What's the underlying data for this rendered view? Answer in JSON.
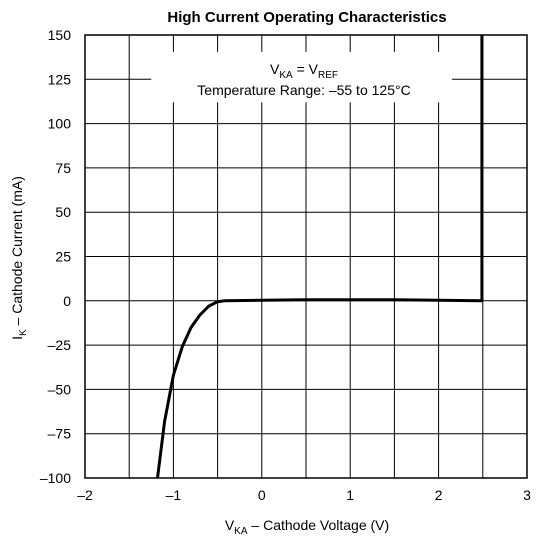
{
  "chart_data": {
    "type": "line",
    "title": "High Current Operating Characteristics",
    "xlabel": {
      "main": "V",
      "sub": "KA",
      "rest": " – Cathode Voltage (V)"
    },
    "ylabel": {
      "main": "I",
      "sub": "K",
      "rest": " – Cathode Current (mA)"
    },
    "annotation": {
      "line1": {
        "a": "V",
        "a_sub": "KA",
        "mid": " = V",
        "b_sub": "REF"
      },
      "line2": "Temperature Range: –55 to 125°C"
    },
    "xlim": [
      -2,
      3
    ],
    "ylim": [
      -100,
      150
    ],
    "xticks": [
      -2,
      -1.5,
      -1,
      -0.5,
      0,
      0.5,
      1,
      1.5,
      2,
      2.5,
      3
    ],
    "yticks": [
      -100,
      -75,
      -50,
      -25,
      0,
      25,
      50,
      75,
      100,
      125,
      150
    ],
    "xtick_labels": [
      "–2",
      "",
      "–1",
      "",
      "0",
      "",
      "1",
      "",
      "2",
      "",
      "3"
    ],
    "ytick_labels": [
      "–100",
      "–75",
      "–50",
      "–25",
      "0",
      "25",
      "50",
      "75",
      "100",
      "125",
      "150"
    ],
    "grid": true,
    "series": [
      {
        "x": [
          -1.18,
          -1.1,
          -1.0,
          -0.9,
          -0.8,
          -0.7,
          -0.6,
          -0.5,
          -0.42,
          0.0,
          0.5,
          1.0,
          1.5,
          2.0,
          2.47,
          2.49,
          2.49
        ],
        "y": [
          -100,
          -68,
          -42,
          -26,
          -15,
          -8,
          -3,
          -0.5,
          0,
          0.3,
          0.6,
          0.6,
          0.6,
          0.3,
          0,
          0,
          150
        ]
      }
    ]
  }
}
